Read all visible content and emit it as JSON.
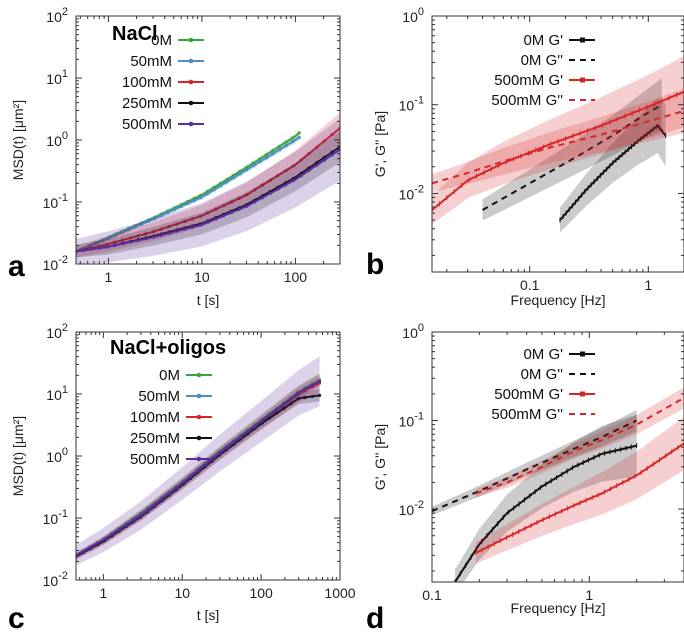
{
  "chart_data": [
    {
      "panel": "a",
      "type": "line",
      "title": "NaCl",
      "xlabel": "t [s]",
      "ylabel": "MSD(t) [μm²]",
      "xscale": "log",
      "yscale": "log",
      "xlim": [
        0.45,
        300
      ],
      "ylim": [
        0.01,
        100
      ],
      "xticks": [
        {
          "v": 1,
          "label": "1"
        },
        {
          "v": 10,
          "label": "10"
        },
        {
          "v": 100,
          "label": "100"
        }
      ],
      "yticks": [
        {
          "v": 0.01,
          "base": "10",
          "exp": "-2"
        },
        {
          "v": 0.1,
          "base": "10",
          "exp": "-1"
        },
        {
          "v": 1,
          "base": "10",
          "exp": "0"
        },
        {
          "v": 10,
          "base": "10",
          "exp": "1"
        },
        {
          "v": 100,
          "base": "10",
          "exp": "2"
        }
      ],
      "legend_position": "top-left",
      "series": [
        {
          "name": "0M",
          "color": "#3aa53a",
          "x": [
            0.45,
            1,
            3,
            10,
            30,
            100,
            110
          ],
          "y": [
            0.016,
            0.027,
            0.055,
            0.13,
            0.36,
            1.15,
            1.3
          ],
          "band": 0.05
        },
        {
          "name": "50mM",
          "color": "#4a90c0",
          "x": [
            0.45,
            1,
            3,
            10,
            30,
            100,
            110
          ],
          "y": [
            0.016,
            0.026,
            0.053,
            0.12,
            0.33,
            1.0,
            1.1
          ],
          "band": 0.06
        },
        {
          "name": "100mM",
          "color": "#d62728",
          "x": [
            0.45,
            1,
            3,
            10,
            30,
            100,
            300
          ],
          "y": [
            0.016,
            0.021,
            0.033,
            0.06,
            0.13,
            0.4,
            1.55
          ],
          "band": 0.25
        },
        {
          "name": "250mM",
          "color": "#111111",
          "x": [
            0.45,
            1,
            3,
            10,
            30,
            100,
            300
          ],
          "y": [
            0.016,
            0.019,
            0.028,
            0.045,
            0.09,
            0.25,
            0.78
          ],
          "band": 0.25
        },
        {
          "name": "500mM",
          "color": "#5b2c9c",
          "x": [
            0.45,
            1,
            3,
            10,
            30,
            100,
            300
          ],
          "y": [
            0.016,
            0.019,
            0.027,
            0.043,
            0.085,
            0.23,
            0.7
          ],
          "band": 0.5
        }
      ]
    },
    {
      "panel": "b",
      "type": "line",
      "title": "",
      "xlabel": "Frequency [Hz]",
      "ylabel": "G', G'' [Pa]",
      "xscale": "log",
      "yscale": "log",
      "xlim": [
        0.015,
        2
      ],
      "ylim": [
        0.0013,
        1
      ],
      "xticks": [
        {
          "v": 0.1,
          "label": "0.1"
        },
        {
          "v": 1,
          "label": "1"
        }
      ],
      "yticks": [
        {
          "v": 0.01,
          "base": "10",
          "exp": "-2"
        },
        {
          "v": 0.1,
          "base": "10",
          "exp": "-1"
        },
        {
          "v": 1,
          "base": "10",
          "exp": "0"
        }
      ],
      "legend_position": "top-left",
      "series": [
        {
          "name": "0M G'",
          "color": "#111111",
          "dash": "solid",
          "x": [
            0.18,
            0.3,
            0.5,
            0.8,
            1.2,
            1.4
          ],
          "y": [
            0.005,
            0.011,
            0.022,
            0.038,
            0.058,
            0.045
          ],
          "band": 0.35
        },
        {
          "name": "0M G''",
          "color": "#111111",
          "dash": "dashed",
          "x": [
            0.04,
            0.1,
            0.25,
            0.5,
            0.9,
            1.3
          ],
          "y": [
            0.0065,
            0.013,
            0.026,
            0.045,
            0.075,
            0.1
          ],
          "band": 0.3
        },
        {
          "name": "500mM G'",
          "color": "#d62728",
          "dash": "solid",
          "x": [
            0.015,
            0.03,
            0.06,
            0.15,
            0.4,
            1,
            2
          ],
          "y": [
            0.0065,
            0.014,
            0.022,
            0.036,
            0.058,
            0.095,
            0.14
          ],
          "band": 0.4
        },
        {
          "name": "500mM G''",
          "color": "#d62728",
          "dash": "dashed",
          "x": [
            0.015,
            0.03,
            0.06,
            0.15,
            0.4,
            1,
            2
          ],
          "y": [
            0.013,
            0.017,
            0.023,
            0.033,
            0.046,
            0.065,
            0.085
          ],
          "band": 0.25
        }
      ]
    },
    {
      "panel": "c",
      "type": "line",
      "title": "NaCl+oligos",
      "xlabel": "t [s]",
      "ylabel": "MSD(t) [μm²]",
      "xscale": "log",
      "yscale": "log",
      "xlim": [
        0.45,
        1000
      ],
      "ylim": [
        0.01,
        100
      ],
      "xticks": [
        {
          "v": 1,
          "label": "1"
        },
        {
          "v": 10,
          "label": "10"
        },
        {
          "v": 100,
          "label": "100"
        },
        {
          "v": 1000,
          "label": "1000"
        }
      ],
      "yticks": [
        {
          "v": 0.01,
          "base": "10",
          "exp": "-2"
        },
        {
          "v": 0.1,
          "base": "10",
          "exp": "-1"
        },
        {
          "v": 1,
          "base": "10",
          "exp": "0"
        },
        {
          "v": 10,
          "base": "10",
          "exp": "1"
        },
        {
          "v": 100,
          "base": "10",
          "exp": "2"
        }
      ],
      "legend_position": "top-left",
      "series": [
        {
          "name": "0M",
          "color": "#3aa53a",
          "x": [
            0.45,
            1,
            3,
            10,
            30,
            100,
            300,
            550
          ],
          "y": [
            0.025,
            0.045,
            0.12,
            0.38,
            1.2,
            3.8,
            11,
            17
          ],
          "band": 0.1
        },
        {
          "name": "50mM",
          "color": "#4a90c0",
          "x": [
            0.45,
            1,
            3,
            10,
            30,
            100,
            300,
            550
          ],
          "y": [
            0.025,
            0.044,
            0.115,
            0.37,
            1.15,
            3.6,
            10.5,
            16
          ],
          "band": 0.1
        },
        {
          "name": "100mM",
          "color": "#d62728",
          "x": [
            0.45,
            1,
            3,
            10,
            30,
            100,
            300,
            550
          ],
          "y": [
            0.024,
            0.043,
            0.11,
            0.36,
            1.1,
            3.5,
            10,
            15
          ],
          "band": 0.15
        },
        {
          "name": "250mM",
          "color": "#111111",
          "x": [
            0.45,
            1,
            3,
            10,
            30,
            100,
            300,
            550
          ],
          "y": [
            0.024,
            0.042,
            0.105,
            0.34,
            1.05,
            3.3,
            8.5,
            9.5
          ],
          "band": 0.1
        },
        {
          "name": "500mM",
          "color": "#5b2c9c",
          "x": [
            0.45,
            1,
            3,
            10,
            30,
            100,
            300,
            550
          ],
          "y": [
            0.025,
            0.044,
            0.11,
            0.36,
            1.12,
            3.6,
            10.5,
            16
          ],
          "band": 0.4
        }
      ]
    },
    {
      "panel": "d",
      "type": "line",
      "title": "",
      "xlabel": "Frequency [Hz]",
      "ylabel": "G', G'' [Pa]",
      "xscale": "log",
      "yscale": "log",
      "xlim": [
        0.1,
        4
      ],
      "ylim": [
        0.0015,
        1
      ],
      "xticks": [
        {
          "v": 0.1,
          "label": "0.1"
        },
        {
          "v": 1,
          "label": "1"
        }
      ],
      "yticks": [
        {
          "v": 0.01,
          "base": "10",
          "exp": "-2"
        },
        {
          "v": 0.1,
          "base": "10",
          "exp": "-1"
        },
        {
          "v": 1,
          "base": "10",
          "exp": "0"
        }
      ],
      "legend_position": "top-left",
      "series": [
        {
          "name": "0M G'",
          "color": "#111111",
          "dash": "solid",
          "x": [
            0.14,
            0.2,
            0.3,
            0.5,
            0.8,
            1.2,
            2
          ],
          "y": [
            0.0015,
            0.004,
            0.009,
            0.018,
            0.03,
            0.042,
            0.052
          ],
          "band": 0.35
        },
        {
          "name": "0M G''",
          "color": "#111111",
          "dash": "dashed",
          "x": [
            0.1,
            0.2,
            0.4,
            0.8,
            1.2,
            2
          ],
          "y": [
            0.0095,
            0.016,
            0.028,
            0.048,
            0.065,
            0.1
          ],
          "band": 0.12
        },
        {
          "name": "500mM G'",
          "color": "#d62728",
          "dash": "solid",
          "x": [
            0.19,
            0.3,
            0.5,
            0.8,
            1.2,
            2,
            4
          ],
          "y": [
            0.0032,
            0.0048,
            0.0075,
            0.011,
            0.015,
            0.024,
            0.055
          ],
          "band": 0.3
        },
        {
          "name": "500mM G''",
          "color": "#d62728",
          "dash": "dashed",
          "x": [
            0.19,
            0.3,
            0.5,
            0.8,
            1.2,
            2,
            4
          ],
          "y": [
            0.015,
            0.02,
            0.03,
            0.045,
            0.06,
            0.09,
            0.18
          ],
          "band": 0.12
        }
      ]
    }
  ]
}
